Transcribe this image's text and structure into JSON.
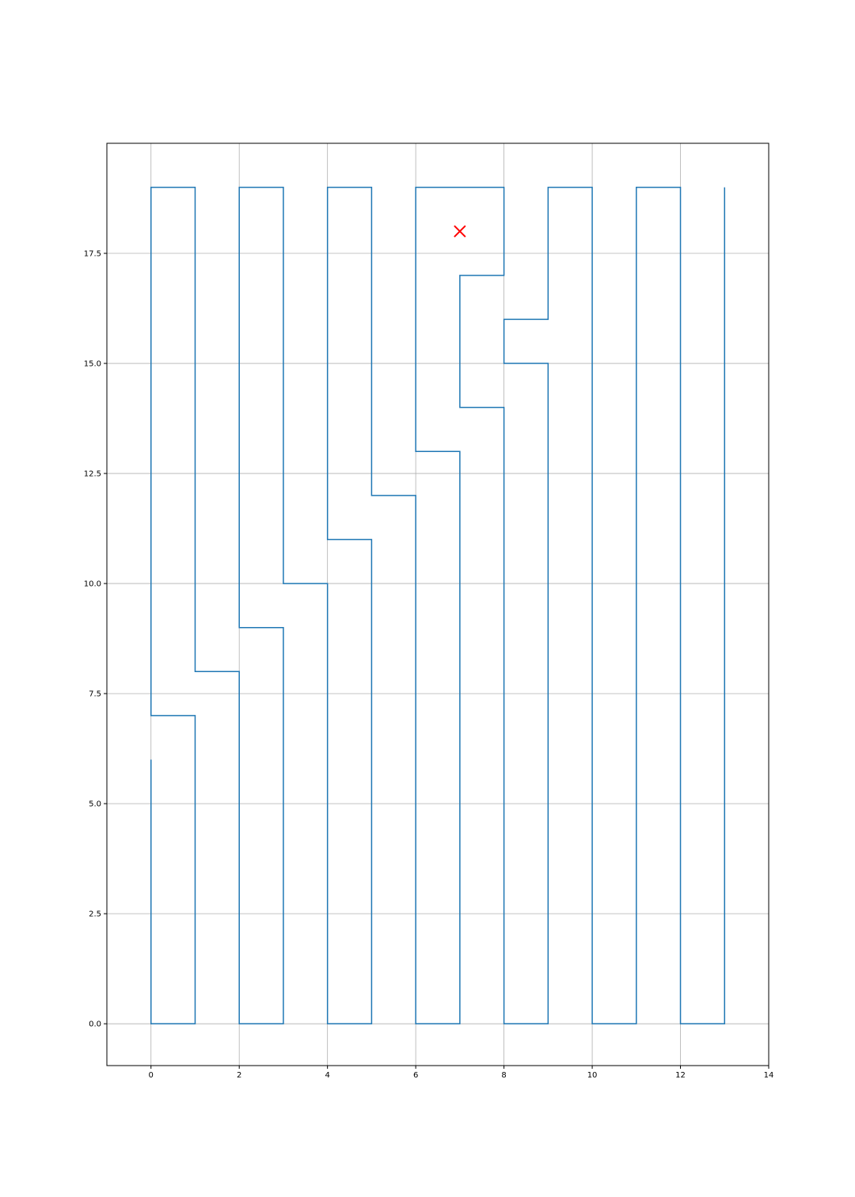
{
  "chart_data": {
    "type": "line",
    "title": "",
    "xlabel": "",
    "ylabel": "",
    "xlim": [
      -1,
      14
    ],
    "ylim": [
      -0.95,
      20.0
    ],
    "grid": true,
    "xticks": [
      0,
      2,
      4,
      6,
      8,
      10,
      12,
      14
    ],
    "xtick_labels": [
      "0",
      "2",
      "4",
      "6",
      "8",
      "10",
      "12",
      "14"
    ],
    "yticks": [
      0,
      2.5,
      5,
      7.5,
      10,
      12.5,
      15,
      17.5
    ],
    "ytick_labels": [
      "0.0",
      "2.5",
      "5.0",
      "7.5",
      "10.0",
      "12.5",
      "15.0",
      "17.5"
    ],
    "series": [
      {
        "color": "#1f77b4",
        "points": [
          [
            0,
            6
          ],
          [
            0,
            0
          ],
          [
            1,
            0
          ],
          [
            1,
            7
          ],
          [
            0,
            7
          ],
          [
            0,
            19
          ],
          [
            1,
            19
          ],
          [
            1,
            8
          ],
          [
            2,
            8
          ],
          [
            2,
            0
          ],
          [
            3,
            0
          ],
          [
            3,
            9
          ],
          [
            2,
            9
          ],
          [
            2,
            19
          ],
          [
            3,
            19
          ],
          [
            3,
            10
          ],
          [
            4,
            10
          ],
          [
            4,
            0
          ],
          [
            5,
            0
          ],
          [
            5,
            11
          ],
          [
            4,
            11
          ],
          [
            4,
            19
          ],
          [
            5,
            19
          ],
          [
            5,
            12
          ],
          [
            6,
            12
          ],
          [
            6,
            0
          ],
          [
            7,
            0
          ],
          [
            7,
            13
          ],
          [
            6,
            13
          ],
          [
            6,
            19
          ],
          [
            8,
            19
          ],
          [
            8,
            17
          ],
          [
            7,
            17
          ],
          [
            7,
            14
          ],
          [
            8,
            14
          ],
          [
            8,
            0
          ],
          [
            9,
            0
          ],
          [
            9,
            15
          ],
          [
            8,
            15
          ],
          [
            8,
            16
          ],
          [
            9,
            16
          ],
          [
            9,
            19
          ],
          [
            10,
            19
          ],
          [
            10,
            0
          ],
          [
            11,
            0
          ],
          [
            11,
            19
          ],
          [
            12,
            19
          ],
          [
            12,
            0
          ],
          [
            13,
            0
          ],
          [
            13,
            19
          ]
        ]
      },
      {
        "marker": "x",
        "color": "#ff0000",
        "points": [
          [
            7,
            18
          ]
        ]
      }
    ]
  }
}
